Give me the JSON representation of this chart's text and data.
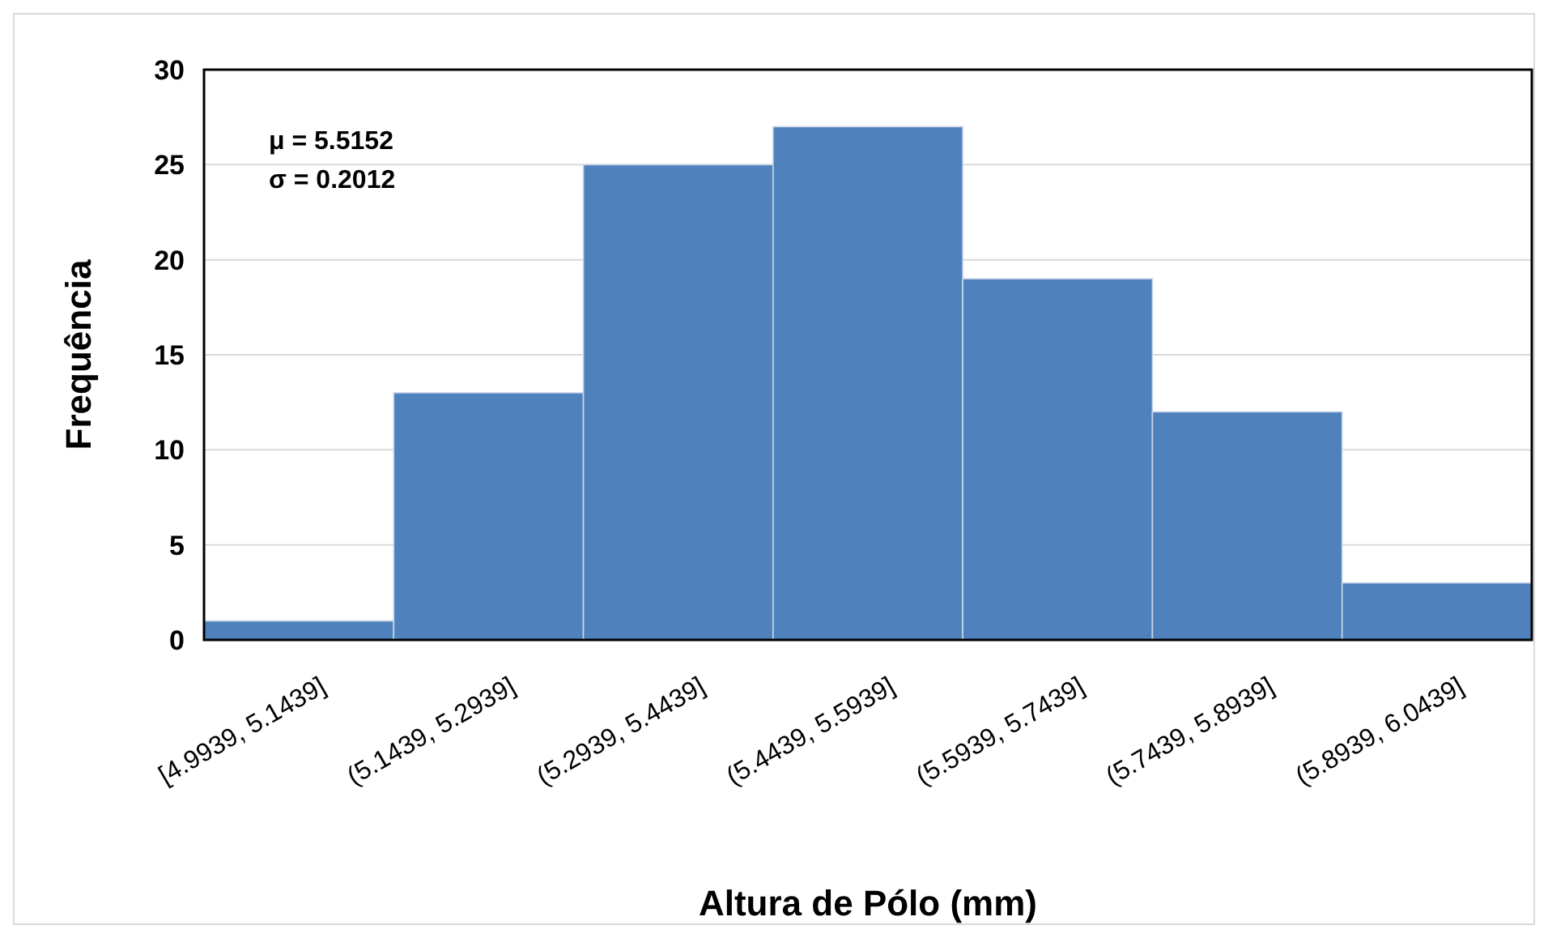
{
  "chart_data": {
    "type": "bar",
    "categories": [
      "[4.9939, 5.1439]",
      "(5.1439, 5.2939]",
      "(5.2939, 5.4439]",
      "(5.4439, 5.5939]",
      "(5.5939, 5.7439]",
      "(5.7439, 5.8939]",
      "(5.8939, 6.0439]"
    ],
    "values": [
      1,
      13,
      25,
      27,
      19,
      12,
      3
    ],
    "color": "#4f81bd",
    "xlabel": "Altura de Pólo (mm)",
    "ylabel": "Frequência",
    "ylim": [
      0,
      30
    ],
    "yticks": [
      0,
      5,
      10,
      15,
      20,
      25,
      30
    ],
    "grid": "y",
    "annotations": [
      "μ = 5.5152",
      "σ = 0.2012"
    ]
  }
}
